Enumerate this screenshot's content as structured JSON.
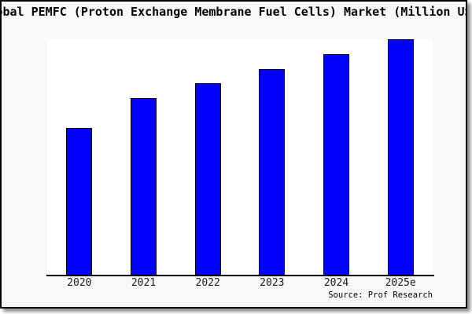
{
  "figure": {
    "title": "Global PEMFC (Proton Exchange Membrane Fuel Cells) Market (Million US$)",
    "source_note": "Source: Prof Research",
    "background_color": "#f8f8f8",
    "plot_background_color": "#ffffff",
    "frame_border_color": "#000000"
  },
  "chart_data": {
    "type": "bar",
    "title": "Global PEMFC (Proton Exchange Membrane Fuel Cells) Market (Million US$)",
    "categories": [
      "2020",
      "2021",
      "2022",
      "2023",
      "2024",
      "2025e"
    ],
    "values": [
      62.6,
      75.1,
      81.4,
      87.5,
      93.7,
      100
    ],
    "values_unit": "relative height, % of tallest (2025e) bar; y-axis not labeled in image",
    "xlabel": "",
    "ylabel": "",
    "ylim": [
      0,
      100
    ],
    "y_axis_visible": false,
    "grid": false,
    "legend": false,
    "bar_color": "#0000ff",
    "bar_edge_color": "#000000",
    "annotation": "Source: Prof Research"
  }
}
